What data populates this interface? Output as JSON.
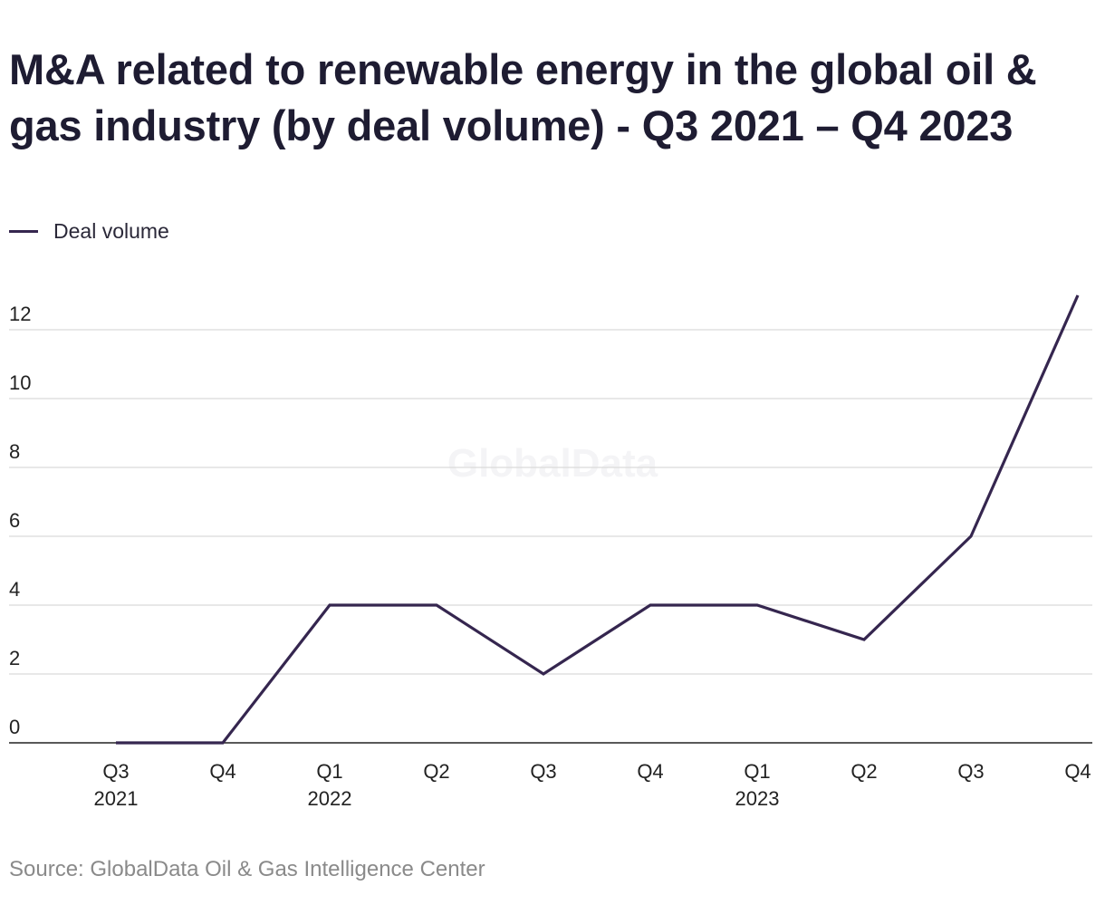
{
  "chart_data": {
    "type": "line",
    "title": "M&A related to renewable energy in the global oil & gas industry (by deal volume) - Q3 2021 – Q4 2023",
    "xlabel": "",
    "ylabel": "",
    "categories": [
      [
        "Q3",
        "2021"
      ],
      [
        "Q4",
        ""
      ],
      [
        "Q1",
        "2022"
      ],
      [
        "Q2",
        ""
      ],
      [
        "Q3",
        ""
      ],
      [
        "Q4",
        ""
      ],
      [
        "Q1",
        "2023"
      ],
      [
        "Q2",
        ""
      ],
      [
        "Q3",
        ""
      ],
      [
        "Q4",
        ""
      ]
    ],
    "series": [
      {
        "name": "Deal volume",
        "color": "#35264f",
        "values": [
          0,
          0,
          4,
          4,
          2,
          4,
          4,
          3,
          6,
          13
        ]
      }
    ],
    "ylim": [
      0,
      13
    ],
    "yticks": [
      0,
      2,
      4,
      6,
      8,
      10,
      12
    ],
    "grid": true,
    "legend": "top-left"
  },
  "watermark": "GlobalData",
  "source": "Source: GlobalData Oil & Gas Intelligence Center"
}
